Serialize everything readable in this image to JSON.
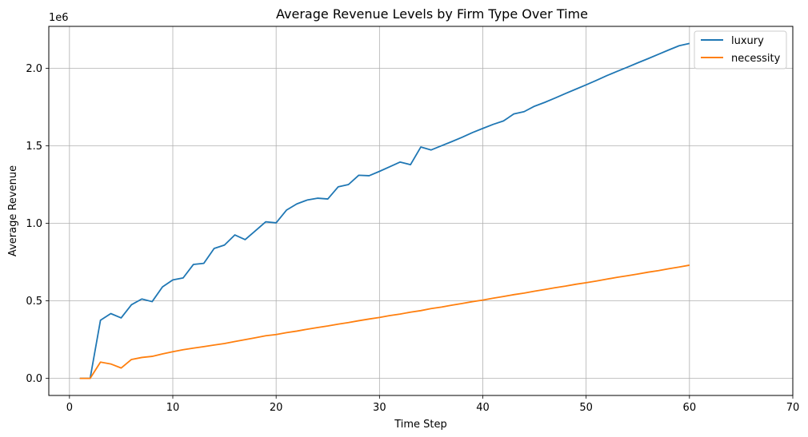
{
  "chart_data": {
    "type": "line",
    "title": "Average Revenue Levels by Firm Type Over Time",
    "xlabel": "Time Step",
    "ylabel": "Average Revenue",
    "y_scale_label": "1e6",
    "y_scale": 1000000,
    "xlim": [
      -2,
      70
    ],
    "ylim": [
      -0.11,
      2.27
    ],
    "xticks": [
      0,
      10,
      20,
      30,
      40,
      50,
      60,
      70
    ],
    "yticks": [
      0.0,
      0.5,
      1.0,
      1.5,
      2.0
    ],
    "grid": true,
    "legend_position": "top-right",
    "series": [
      {
        "name": "luxury",
        "color": "#1f77b4",
        "x": [
          1,
          2,
          3,
          4,
          5,
          6,
          7,
          8,
          9,
          10,
          11,
          12,
          13,
          14,
          15,
          16,
          17,
          18,
          19,
          20,
          21,
          22,
          23,
          24,
          25,
          26,
          27,
          28,
          29,
          30,
          31,
          32,
          33,
          34,
          35,
          36,
          37,
          38,
          39,
          40,
          41,
          42,
          43,
          44,
          45,
          46,
          47,
          48,
          49,
          50,
          51,
          52,
          53,
          54,
          55,
          56,
          57,
          58,
          59,
          60
        ],
        "values": [
          0.0,
          0.0,
          0.375,
          0.418,
          0.39,
          0.475,
          0.512,
          0.495,
          0.59,
          0.635,
          0.648,
          0.735,
          0.742,
          0.838,
          0.86,
          0.925,
          0.895,
          0.952,
          1.01,
          1.003,
          1.085,
          1.125,
          1.15,
          1.162,
          1.157,
          1.235,
          1.25,
          1.31,
          1.307,
          1.335,
          1.365,
          1.395,
          1.378,
          1.492,
          1.473,
          1.5,
          1.527,
          1.555,
          1.585,
          1.612,
          1.638,
          1.66,
          1.705,
          1.72,
          1.755,
          1.78,
          1.808,
          1.837,
          1.865,
          1.893,
          1.922,
          1.952,
          1.98,
          2.007,
          2.035,
          2.062,
          2.09,
          2.118,
          2.145,
          2.16
        ]
      },
      {
        "name": "necessity",
        "color": "#ff7f0e",
        "x": [
          1,
          2,
          3,
          4,
          5,
          6,
          7,
          8,
          9,
          10,
          11,
          12,
          13,
          14,
          15,
          16,
          17,
          18,
          19,
          20,
          21,
          22,
          23,
          24,
          25,
          26,
          27,
          28,
          29,
          30,
          31,
          32,
          33,
          34,
          35,
          36,
          37,
          38,
          39,
          40,
          41,
          42,
          43,
          44,
          45,
          46,
          47,
          48,
          49,
          50,
          51,
          52,
          53,
          54,
          55,
          56,
          57,
          58,
          59,
          60
        ],
        "values": [
          0.0,
          0.0,
          0.105,
          0.093,
          0.067,
          0.122,
          0.135,
          0.142,
          0.158,
          0.172,
          0.185,
          0.195,
          0.205,
          0.215,
          0.225,
          0.238,
          0.25,
          0.262,
          0.275,
          0.283,
          0.295,
          0.305,
          0.317,
          0.328,
          0.338,
          0.35,
          0.36,
          0.372,
          0.383,
          0.393,
          0.405,
          0.415,
          0.427,
          0.437,
          0.45,
          0.46,
          0.472,
          0.483,
          0.495,
          0.505,
          0.517,
          0.528,
          0.54,
          0.55,
          0.562,
          0.573,
          0.585,
          0.595,
          0.607,
          0.617,
          0.628,
          0.64,
          0.652,
          0.662,
          0.673,
          0.685,
          0.695,
          0.707,
          0.718,
          0.73
        ]
      }
    ]
  }
}
